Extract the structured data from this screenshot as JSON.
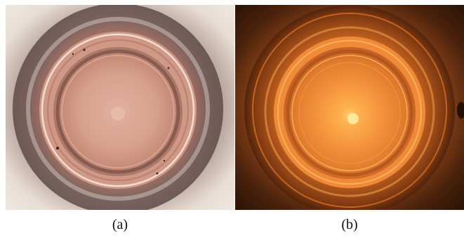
{
  "panels": [
    {
      "id": "a",
      "caption": "(a)",
      "colors": {
        "background": "#e9e0d8",
        "outer_dark": "#6b4a44",
        "inner": "#d59a85",
        "center": "#e3b0a0",
        "ring_light": "#f3e1d6"
      }
    },
    {
      "id": "b",
      "caption": "(b)",
      "colors": {
        "background": "#2a1408",
        "outer": "#8a4218",
        "inner": "#f08a3a",
        "center": "#ffd070",
        "ring_light": "#ffb060"
      }
    }
  ]
}
